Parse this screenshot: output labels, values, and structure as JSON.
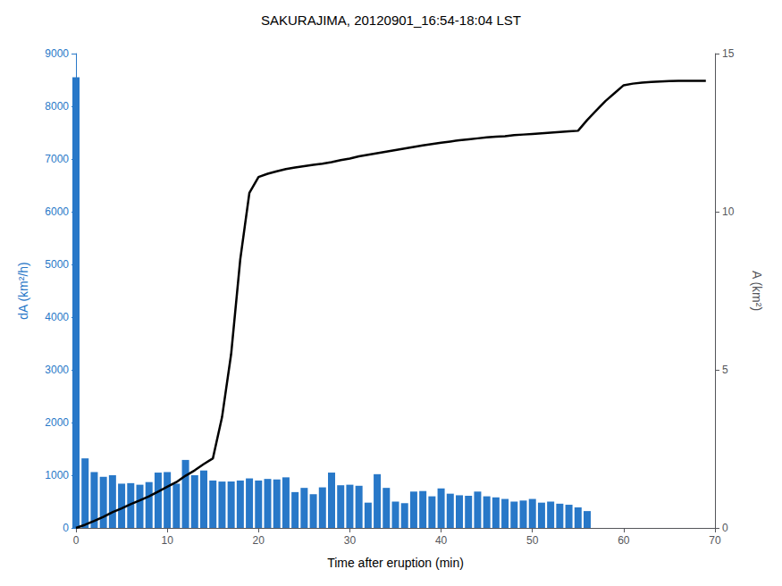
{
  "chart_data": {
    "type": "bar",
    "title": "SAKURAJIMA, 20120901_16:54-18:04 LST",
    "xlabel": "Time after eruption (min)",
    "ylabel": "dA (km²/h)",
    "y2label": "A (km²)",
    "grid": false,
    "xlim": [
      0,
      70
    ],
    "xticks": [
      0,
      10,
      20,
      30,
      40,
      50,
      60,
      70
    ],
    "ylim": [
      0,
      9000
    ],
    "yticks": [
      0,
      1000,
      2000,
      3000,
      4000,
      5000,
      6000,
      7000,
      8000,
      9000
    ],
    "y2lim": [
      0,
      15
    ],
    "y2ticks": [
      0,
      5,
      10,
      15
    ],
    "series": [
      {
        "type": "bar",
        "color": "#2878c8",
        "x": [
          0,
          1,
          2,
          3,
          4,
          5,
          6,
          7,
          8,
          9,
          10,
          11,
          12,
          13,
          14,
          15,
          16,
          17,
          18,
          19,
          20,
          21,
          22,
          23,
          24,
          25,
          26,
          27,
          28,
          29,
          30,
          31,
          32,
          33,
          34,
          35,
          36,
          37,
          38,
          39,
          40,
          41,
          42,
          43,
          44,
          45,
          46,
          47,
          48,
          49,
          50,
          51,
          52,
          53,
          54,
          55,
          56
        ],
        "values": [
          8550,
          1320,
          1060,
          970,
          1000,
          840,
          850,
          820,
          870,
          1050,
          1060,
          840,
          1290,
          1000,
          1090,
          900,
          880,
          880,
          900,
          940,
          900,
          930,
          920,
          960,
          680,
          760,
          640,
          770,
          1050,
          810,
          820,
          800,
          480,
          1020,
          760,
          500,
          470,
          690,
          700,
          600,
          750,
          650,
          620,
          610,
          690,
          600,
          580,
          550,
          500,
          520,
          550,
          480,
          500,
          460,
          440,
          390,
          320
        ]
      },
      {
        "type": "line",
        "axis": "y2",
        "color": "#000000",
        "x": [
          0,
          1,
          2,
          3,
          4,
          5,
          6,
          7,
          8,
          9,
          10,
          11,
          12,
          13,
          14,
          15,
          16,
          17,
          18,
          19,
          20,
          21,
          22,
          23,
          24,
          25,
          26,
          27,
          28,
          29,
          30,
          31,
          32,
          33,
          34,
          35,
          36,
          37,
          38,
          39,
          40,
          41,
          42,
          43,
          44,
          45,
          46,
          47,
          48,
          49,
          50,
          51,
          52,
          53,
          54,
          55,
          56,
          57,
          58,
          59,
          60,
          61,
          62,
          63,
          64,
          65,
          66,
          67,
          68,
          69
        ],
        "values": [
          0.0,
          0.1,
          0.22,
          0.35,
          0.5,
          0.62,
          0.75,
          0.87,
          1.0,
          1.15,
          1.3,
          1.45,
          1.65,
          1.82,
          2.02,
          2.2,
          3.5,
          5.5,
          8.5,
          10.6,
          11.1,
          11.2,
          11.28,
          11.35,
          11.4,
          11.44,
          11.48,
          11.52,
          11.57,
          11.63,
          11.68,
          11.75,
          11.8,
          11.85,
          11.9,
          11.95,
          12.0,
          12.05,
          12.1,
          12.14,
          12.18,
          12.22,
          12.26,
          12.29,
          12.32,
          12.35,
          12.37,
          12.39,
          12.42,
          12.44,
          12.46,
          12.48,
          12.5,
          12.52,
          12.54,
          12.56,
          12.9,
          13.2,
          13.5,
          13.75,
          14.0,
          14.05,
          14.08,
          14.1,
          14.12,
          14.13,
          14.14,
          14.14,
          14.14,
          14.14
        ]
      }
    ]
  }
}
